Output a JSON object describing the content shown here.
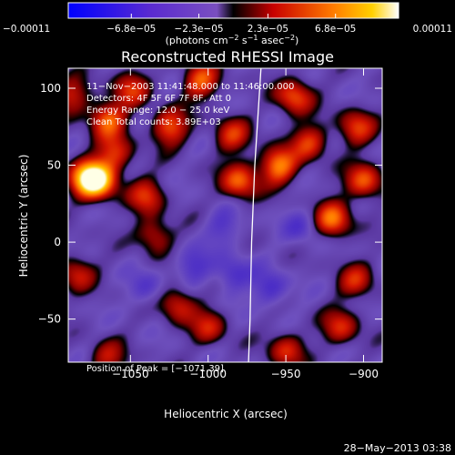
{
  "chart_data": {
    "type": "heatmap",
    "title": "Reconstructed RHESSI Image",
    "xlabel": "Heliocentric X (arcsec)",
    "ylabel": "Heliocentric Y (arcsec)",
    "xlim": [
      -1090,
      -888
    ],
    "ylim": [
      -78,
      113
    ],
    "x_ticks": [
      -1050,
      -1000,
      -950,
      -900
    ],
    "y_ticks": [
      -50,
      0,
      50,
      100
    ],
    "x_tick_labels": [
      "−1050",
      "−1000",
      "−950",
      "−900"
    ],
    "y_tick_labels": [
      "−50",
      "0",
      "50",
      "100"
    ],
    "colorbar": {
      "min": -0.00011,
      "max": 0.00011,
      "tick_values": [
        -0.00011,
        -6.8e-05,
        -2.3e-05,
        2.3e-05,
        6.8e-05,
        0.00011
      ],
      "tick_labels": [
        "−0.00011",
        "−6.8e−05",
        "−2.3e−05",
        "2.3e−05",
        "6.8e−05",
        "0.00011"
      ],
      "unit_main": "(photons cm",
      "unit_exp1": "−2",
      "unit_mid": " s",
      "unit_exp2": "−1",
      "unit_mid2": " asec",
      "unit_exp3": "−2",
      "unit_end": ")"
    },
    "annotations": [
      "11−Nov−2003 11:41:48.000 to 11:46:00.000",
      "Detectors: 4F 5F 6F 7F 8F, Att 0",
      "Energy Range: 12.0 − 25.0 keV",
      "Clean    Total counts: 3.89E+03"
    ],
    "peak_label": "Position of Peak = [−1071,39]",
    "limb_arc": [
      [
        -966,
        113
      ],
      [
        -970,
        50
      ],
      [
        -972,
        0
      ],
      [
        -973,
        -50
      ],
      [
        -974,
        -78
      ]
    ],
    "sources": [
      {
        "x": -1078,
        "y": 42,
        "intensity": 1.0
      },
      {
        "x": -1070,
        "y": 40,
        "intensity": 0.9
      },
      {
        "x": -1065,
        "y": 80,
        "intensity": 0.75
      },
      {
        "x": -1060,
        "y": 58,
        "intensity": 0.55
      },
      {
        "x": -1040,
        "y": 30,
        "intensity": 0.55
      },
      {
        "x": -1025,
        "y": 75,
        "intensity": 0.7
      },
      {
        "x": -1005,
        "y": 105,
        "intensity": 0.7
      },
      {
        "x": -980,
        "y": 40,
        "intensity": 0.75
      },
      {
        "x": -985,
        "y": 70,
        "intensity": 0.55
      },
      {
        "x": -955,
        "y": 50,
        "intensity": 0.85
      },
      {
        "x": -945,
        "y": 95,
        "intensity": 0.7
      },
      {
        "x": -935,
        "y": 65,
        "intensity": 0.6
      },
      {
        "x": -920,
        "y": 15,
        "intensity": 0.8
      },
      {
        "x": -905,
        "y": 75,
        "intensity": 0.6
      },
      {
        "x": -900,
        "y": 40,
        "intensity": 0.7
      },
      {
        "x": -1020,
        "y": -40,
        "intensity": 0.55
      },
      {
        "x": -1000,
        "y": -55,
        "intensity": 0.5
      },
      {
        "x": -950,
        "y": -70,
        "intensity": 0.55
      },
      {
        "x": -915,
        "y": -55,
        "intensity": 0.55
      },
      {
        "x": -905,
        "y": -25,
        "intensity": 0.5
      },
      {
        "x": -1085,
        "y": -20,
        "intensity": 0.5
      },
      {
        "x": -1065,
        "y": -75,
        "intensity": 0.45
      },
      {
        "x": -1035,
        "y": 5,
        "intensity": 0.5
      },
      {
        "x": -1050,
        "y": 100,
        "intensity": 0.55
      },
      {
        "x": -1088,
        "y": 95,
        "intensity": 0.5
      },
      {
        "x": -1010,
        "y": -15,
        "intensity": -0.35
      },
      {
        "x": -985,
        "y": -20,
        "intensity": -0.4
      },
      {
        "x": -960,
        "y": -30,
        "intensity": -0.4
      },
      {
        "x": -1040,
        "y": -30,
        "intensity": -0.3
      },
      {
        "x": -990,
        "y": 10,
        "intensity": -0.3
      },
      {
        "x": -940,
        "y": 10,
        "intensity": -0.3
      }
    ]
  },
  "footer": {
    "date": "28−May−2013 03:38"
  }
}
